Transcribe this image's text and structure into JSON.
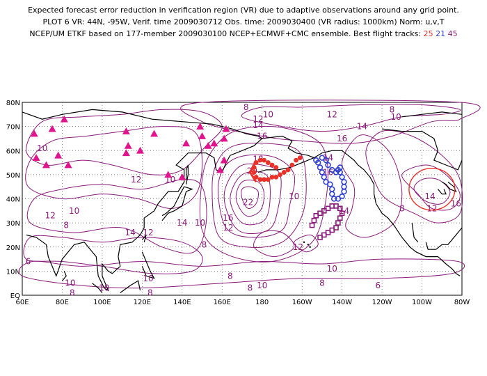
{
  "title": {
    "line1": "Expected forecast error reduction in verification region (VR) due to adaptive observations around any grid point.",
    "line2": "PLOT 6 VR: 44N, -95W, Verif. time 2009030712 Obs. time: 2009030400 (VR radius: 1000km) Norm: u,v,T",
    "line3_prefix": "NCEP/UM ETKF based on 177-member 2009030100 NCEP+ECMWF+CMC ensemble. Best flight tracks:",
    "track_a": "25",
    "track_b": "21",
    "track_c": "45"
  },
  "axes": {
    "lat_ticks": [
      "EQ",
      "10N",
      "20N",
      "30N",
      "40N",
      "50N",
      "60N",
      "70N",
      "80N"
    ],
    "lon_ticks": [
      "60E",
      "80E",
      "100E",
      "120E",
      "140E",
      "160E",
      "180",
      "160W",
      "140W",
      "120W",
      "100W",
      "80W"
    ]
  },
  "colors": {
    "contour": "#8a1a7a",
    "coast": "#000000",
    "grid": "#555555",
    "triangles": "#e0148c",
    "track_red": "#e8322a",
    "track_blue": "#3040d0",
    "track_purple": "#8a1a7a",
    "verification_circle": "#e8322a"
  },
  "contour_labels": [
    {
      "text": "8",
      "lon": 172.0,
      "lat": 78.0
    },
    {
      "text": "10",
      "lon": 183.0,
      "lat": 75.0
    },
    {
      "text": "12",
      "lon": 178.0,
      "lat": 73.0
    },
    {
      "text": "14",
      "lon": 178.0,
      "lat": 70.5
    },
    {
      "text": "16",
      "lon": 180.0,
      "lat": 66.0
    },
    {
      "text": "18",
      "lon": 178.0,
      "lat": 56.5
    },
    {
      "text": "20",
      "lon": 175.0,
      "lat": 51.5
    },
    {
      "text": "22",
      "lon": 173.0,
      "lat": 38.5
    },
    {
      "text": "10",
      "lon": 196.0,
      "lat": 41.0
    },
    {
      "text": "16",
      "lon": 163.0,
      "lat": 32.0
    },
    {
      "text": "12",
      "lon": 163.0,
      "lat": 28.0
    },
    {
      "text": "12",
      "lon": 198.0,
      "lat": 20.0
    },
    {
      "text": "10",
      "lon": 70.0,
      "lat": 61.0
    },
    {
      "text": "12",
      "lon": 117.0,
      "lat": 48.0
    },
    {
      "text": "10",
      "lon": 134.0,
      "lat": 48.0
    },
    {
      "text": "12",
      "lon": 74.0,
      "lat": 33.0
    },
    {
      "text": "10",
      "lon": 86.0,
      "lat": 35.0
    },
    {
      "text": "8",
      "lon": 82.0,
      "lat": 29.0
    },
    {
      "text": "14",
      "lon": 114.0,
      "lat": 26.0
    },
    {
      "text": "12",
      "lon": 123.0,
      "lat": 26.0
    },
    {
      "text": "14",
      "lon": 140.0,
      "lat": 30.0
    },
    {
      "text": "10",
      "lon": 149.0,
      "lat": 30.0
    },
    {
      "text": "8",
      "lon": 151.0,
      "lat": 21.0
    },
    {
      "text": "6",
      "lon": 63.0,
      "lat": 14.0
    },
    {
      "text": "10",
      "lon": 84.0,
      "lat": 5.0
    },
    {
      "text": "10",
      "lon": 101.0,
      "lat": 3.0
    },
    {
      "text": "8",
      "lon": 85.0,
      "lat": 1.0
    },
    {
      "text": "10",
      "lon": 123.0,
      "lat": 7.0
    },
    {
      "text": "8",
      "lon": 124.0,
      "lat": 1.0
    },
    {
      "text": "8",
      "lon": 164.0,
      "lat": 8.0
    },
    {
      "text": "8",
      "lon": 174.0,
      "lat": 3.0
    },
    {
      "text": "10",
      "lon": 180.0,
      "lat": 4.0
    },
    {
      "text": "8",
      "lon": 210.0,
      "lat": 5.0
    },
    {
      "text": "6",
      "lon": 238.0,
      "lat": 4.0
    },
    {
      "text": "10",
      "lon": 215.0,
      "lat": 11.0
    },
    {
      "text": "14",
      "lon": 221.0,
      "lat": 35.0
    },
    {
      "text": "16",
      "lon": 213.0,
      "lat": 51.0
    },
    {
      "text": "14",
      "lon": 213.0,
      "lat": 57.0
    },
    {
      "text": "16",
      "lon": 220.0,
      "lat": 65.0
    },
    {
      "text": "14",
      "lon": 230.0,
      "lat": 70.0
    },
    {
      "text": "10",
      "lon": 247.0,
      "lat": 74.0
    },
    {
      "text": "8",
      "lon": 245.0,
      "lat": 77.0
    },
    {
      "text": "12",
      "lon": 215.0,
      "lat": 75.0
    },
    {
      "text": "8",
      "lon": 250.0,
      "lat": 36.0
    },
    {
      "text": "14",
      "lon": 264.0,
      "lat": 41.0
    },
    {
      "text": "12",
      "lon": 265.0,
      "lat": 36.0
    },
    {
      "text": "16",
      "lon": 277.0,
      "lat": 38.0
    }
  ],
  "triangles": [
    {
      "lon": 66,
      "lat": 67
    },
    {
      "lon": 67,
      "lat": 57
    },
    {
      "lon": 72,
      "lat": 54
    },
    {
      "lon": 75,
      "lat": 69
    },
    {
      "lon": 81,
      "lat": 73
    },
    {
      "lon": 78,
      "lat": 58
    },
    {
      "lon": 83,
      "lat": 54
    },
    {
      "lon": 112,
      "lat": 68
    },
    {
      "lon": 113,
      "lat": 62
    },
    {
      "lon": 112,
      "lat": 59
    },
    {
      "lon": 119,
      "lat": 60
    },
    {
      "lon": 126,
      "lat": 67
    },
    {
      "lon": 133,
      "lat": 50
    },
    {
      "lon": 140,
      "lat": 49
    },
    {
      "lon": 142,
      "lat": 63
    },
    {
      "lon": 149,
      "lat": 70
    },
    {
      "lon": 150,
      "lat": 66
    },
    {
      "lon": 153,
      "lat": 62
    },
    {
      "lon": 156,
      "lat": 63
    },
    {
      "lon": 159,
      "lat": 52
    },
    {
      "lon": 161,
      "lat": 56
    },
    {
      "lon": 161,
      "lat": 65
    },
    {
      "lon": 162,
      "lat": 69
    }
  ],
  "track_red": [
    {
      "lon": 187,
      "lat": 53
    },
    {
      "lon": 185,
      "lat": 54
    },
    {
      "lon": 183,
      "lat": 55
    },
    {
      "lon": 181,
      "lat": 56
    },
    {
      "lon": 179,
      "lat": 56
    },
    {
      "lon": 177,
      "lat": 55
    },
    {
      "lon": 176,
      "lat": 53
    },
    {
      "lon": 176,
      "lat": 51
    },
    {
      "lon": 177,
      "lat": 49
    },
    {
      "lon": 179,
      "lat": 48
    },
    {
      "lon": 181,
      "lat": 48
    },
    {
      "lon": 183,
      "lat": 48
    },
    {
      "lon": 185,
      "lat": 49
    },
    {
      "lon": 187,
      "lat": 49
    },
    {
      "lon": 189,
      "lat": 50
    },
    {
      "lon": 191,
      "lat": 51
    },
    {
      "lon": 193,
      "lat": 52
    },
    {
      "lon": 195,
      "lat": 54
    },
    {
      "lon": 197,
      "lat": 56
    },
    {
      "lon": 199,
      "lat": 57
    }
  ],
  "track_blue": [
    {
      "lon": 210,
      "lat": 57
    },
    {
      "lon": 212,
      "lat": 56
    },
    {
      "lon": 213,
      "lat": 54
    },
    {
      "lon": 215,
      "lat": 52
    },
    {
      "lon": 217,
      "lat": 51
    },
    {
      "lon": 218,
      "lat": 52
    },
    {
      "lon": 219,
      "lat": 53
    },
    {
      "lon": 219,
      "lat": 51
    },
    {
      "lon": 220,
      "lat": 49
    },
    {
      "lon": 221,
      "lat": 47
    },
    {
      "lon": 221,
      "lat": 45
    },
    {
      "lon": 221,
      "lat": 43
    },
    {
      "lon": 220,
      "lat": 41
    },
    {
      "lon": 218,
      "lat": 40
    },
    {
      "lon": 216,
      "lat": 40
    },
    {
      "lon": 215,
      "lat": 42
    },
    {
      "lon": 215,
      "lat": 44
    },
    {
      "lon": 214,
      "lat": 46
    },
    {
      "lon": 212,
      "lat": 47
    },
    {
      "lon": 211,
      "lat": 49
    },
    {
      "lon": 210,
      "lat": 51
    },
    {
      "lon": 209,
      "lat": 53
    },
    {
      "lon": 208,
      "lat": 55
    },
    {
      "lon": 207,
      "lat": 56
    }
  ],
  "track_purple": [
    {
      "lon": 205,
      "lat": 29
    },
    {
      "lon": 206,
      "lat": 31
    },
    {
      "lon": 207,
      "lat": 33
    },
    {
      "lon": 209,
      "lat": 34
    },
    {
      "lon": 211,
      "lat": 35
    },
    {
      "lon": 213,
      "lat": 36
    },
    {
      "lon": 215,
      "lat": 37
    },
    {
      "lon": 217,
      "lat": 37
    },
    {
      "lon": 219,
      "lat": 36
    },
    {
      "lon": 220,
      "lat": 34
    },
    {
      "lon": 219,
      "lat": 32
    },
    {
      "lon": 218,
      "lat": 30
    },
    {
      "lon": 217,
      "lat": 28
    },
    {
      "lon": 215,
      "lat": 27
    },
    {
      "lon": 213,
      "lat": 26
    },
    {
      "lon": 211,
      "lat": 25
    },
    {
      "lon": 209,
      "lat": 24
    }
  ],
  "verification_region": {
    "lon": 265,
    "lat": 44,
    "radius_km": 1000
  }
}
